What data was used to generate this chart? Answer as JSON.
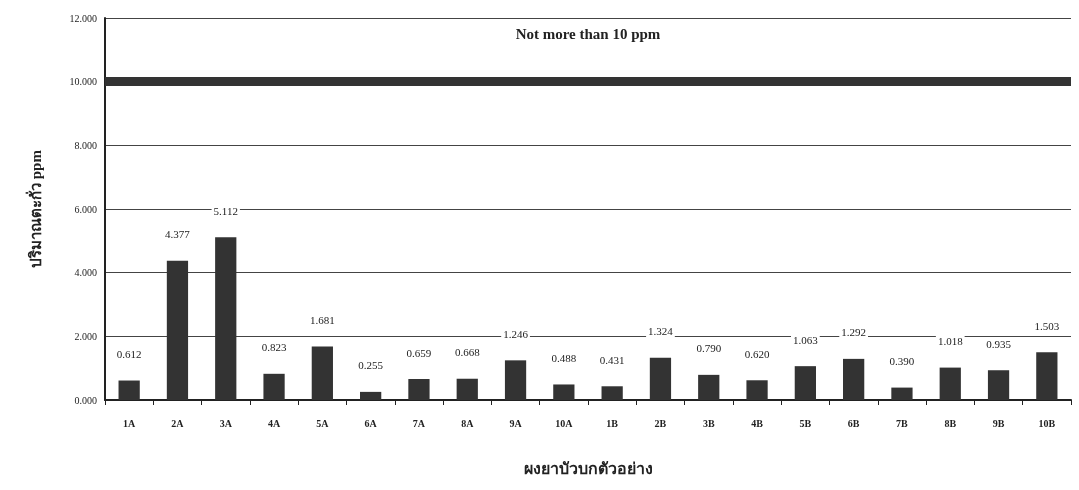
{
  "chart_data": {
    "type": "bar",
    "xlabel": "ผงยาบัวบกตัวอย่าง",
    "ylabel": "ปริมาณตะกั่ว ppm",
    "categories": [
      "1A",
      "2A",
      "3A",
      "4A",
      "5A",
      "6A",
      "7A",
      "8A",
      "9A",
      "10A",
      "1B",
      "2B",
      "3B",
      "4B",
      "5B",
      "6B",
      "7B",
      "8B",
      "9B",
      "10B"
    ],
    "values": [
      0.612,
      4.377,
      5.112,
      0.823,
      1.681,
      0.255,
      0.659,
      0.668,
      1.246,
      0.488,
      0.431,
      1.324,
      0.79,
      0.62,
      1.063,
      1.292,
      0.39,
      1.018,
      0.935,
      1.503
    ],
    "value_labels": [
      "0.612",
      "4.377",
      "5.112",
      "0.823",
      "1.681",
      "0.255",
      "0.659",
      "0.668",
      "1.246",
      "0.488",
      "0.431",
      "1.324",
      "0.790",
      "0.620",
      "1.063",
      "1.292",
      "0.390",
      "1.018",
      "0.935",
      "1.503"
    ],
    "color": "#333333",
    "ylim": [
      0,
      12
    ],
    "yticks": [
      {
        "value": 0,
        "label": "0.000"
      },
      {
        "value": 2,
        "label": "2.000"
      },
      {
        "value": 4,
        "label": "4.000"
      },
      {
        "value": 6,
        "label": "6.000"
      },
      {
        "value": 8,
        "label": "8.000"
      },
      {
        "value": 10,
        "label": "10.000"
      },
      {
        "value": 12,
        "label": "12.000"
      }
    ],
    "grid": "y",
    "ref_lines": [
      {
        "axis": "y",
        "value": 10,
        "label": "Not more than 10 ppm",
        "color": "#333333"
      }
    ]
  }
}
